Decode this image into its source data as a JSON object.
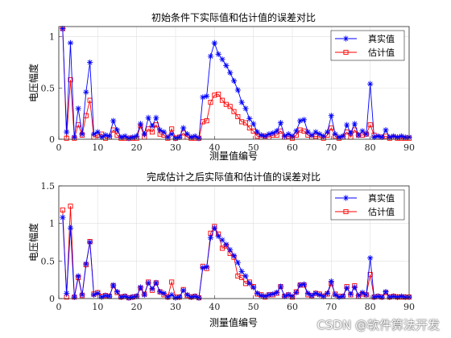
{
  "watermark": "CSDN @软件算法开发",
  "colors": {
    "real": "#0000ff",
    "est": "#ff0000"
  },
  "chart_data": [
    {
      "type": "line",
      "title": "初始条件下实际值和估计值的误差对比",
      "xlabel": "测量值编号",
      "ylabel": "电压幅度",
      "xlim": [
        0,
        90
      ],
      "ylim": [
        0,
        1.1
      ],
      "xticks": [
        0,
        10,
        20,
        30,
        40,
        50,
        60,
        70,
        80,
        90
      ],
      "yticks": [
        0,
        0.5,
        1
      ],
      "ytick_labels": [
        "0",
        "0.5",
        "1"
      ],
      "grid": true,
      "legend_position": "top-right",
      "x": [
        1,
        2,
        3,
        4,
        5,
        6,
        7,
        8,
        9,
        10,
        11,
        12,
        13,
        14,
        15,
        16,
        17,
        18,
        19,
        20,
        21,
        22,
        23,
        24,
        25,
        26,
        27,
        28,
        29,
        30,
        31,
        32,
        33,
        34,
        35,
        36,
        37,
        38,
        39,
        40,
        41,
        42,
        43,
        44,
        45,
        46,
        47,
        48,
        49,
        50,
        51,
        52,
        53,
        54,
        55,
        56,
        57,
        58,
        59,
        60,
        61,
        62,
        63,
        64,
        65,
        66,
        67,
        68,
        69,
        70,
        71,
        72,
        73,
        74,
        75,
        76,
        77,
        78,
        79,
        80,
        81,
        82,
        83,
        84,
        85,
        86,
        87,
        88,
        89,
        90
      ],
      "series": [
        {
          "name": "真实值",
          "marker": "asterisk",
          "color": "#0000ff",
          "values": [
            1.08,
            0.07,
            0.94,
            0.02,
            0.3,
            0.05,
            0.46,
            0.75,
            0.05,
            0.07,
            0.02,
            0.04,
            0.03,
            0.18,
            0.09,
            0.02,
            0.03,
            0.01,
            0.02,
            0.03,
            0.15,
            0.05,
            0.21,
            0.13,
            0.21,
            0.09,
            0.07,
            0.02,
            0.05,
            0.01,
            0.02,
            0.11,
            0.05,
            0.02,
            0.03,
            0.01,
            0.41,
            0.42,
            0.81,
            0.94,
            0.83,
            0.78,
            0.72,
            0.65,
            0.57,
            0.48,
            0.36,
            0.3,
            0.2,
            0.15,
            0.07,
            0.04,
            0.03,
            0.05,
            0.06,
            0.08,
            0.16,
            0.03,
            0.05,
            0.03,
            0.08,
            0.18,
            0.19,
            0.07,
            0.04,
            0.07,
            0.05,
            0.03,
            0.07,
            0.23,
            0.05,
            0.02,
            0.03,
            0.14,
            0.06,
            0.15,
            0.04,
            0.08,
            0.05,
            0.54,
            0.02,
            0.03,
            0.02,
            0.09,
            0.02,
            0.03,
            0.02,
            0.03,
            0.02,
            0.02
          ]
        },
        {
          "name": "估计值",
          "marker": "square",
          "color": "#ff0000",
          "values": [
            1.08,
            0.01,
            0.58,
            0.01,
            0.14,
            0.04,
            0.23,
            0.38,
            0.02,
            0.04,
            0.05,
            0.01,
            0.02,
            0.09,
            0.04,
            0.01,
            0.01,
            0.01,
            0.01,
            0.01,
            0.13,
            0.02,
            0.1,
            0.07,
            0.14,
            0.05,
            0.04,
            0.01,
            0.1,
            0.01,
            0.02,
            0.06,
            0.02,
            0.01,
            0.01,
            0.01,
            0.17,
            0.18,
            0.36,
            0.43,
            0.44,
            0.38,
            0.34,
            0.32,
            0.27,
            0.22,
            0.17,
            0.16,
            0.11,
            0.08,
            0.03,
            0.02,
            0.03,
            0.02,
            0.04,
            0.04,
            0.08,
            0.02,
            0.03,
            0.01,
            0.04,
            0.09,
            0.08,
            0.04,
            0.02,
            0.03,
            0.02,
            0.01,
            0.04,
            0.11,
            0.03,
            0.01,
            0.02,
            0.07,
            0.02,
            0.09,
            0.04,
            0.04,
            0.05,
            0.14,
            0.04,
            0.02,
            0.02,
            0.03,
            0.01,
            0.02,
            0.01,
            0.01,
            0.01,
            0.01
          ]
        }
      ]
    },
    {
      "type": "line",
      "title": "完成估计之后实际值和估计值的误差对比",
      "xlabel": "测量值编号",
      "ylabel": "电压幅度",
      "xlim": [
        0,
        90
      ],
      "ylim": [
        0,
        1.5
      ],
      "xticks": [
        0,
        10,
        20,
        30,
        40,
        50,
        60,
        70,
        80,
        90
      ],
      "yticks": [
        0,
        0.5,
        1,
        1.5
      ],
      "ytick_labels": [
        "0",
        "0.5",
        "1",
        "1.5"
      ],
      "grid": true,
      "legend_position": "top-right",
      "x": [
        1,
        2,
        3,
        4,
        5,
        6,
        7,
        8,
        9,
        10,
        11,
        12,
        13,
        14,
        15,
        16,
        17,
        18,
        19,
        20,
        21,
        22,
        23,
        24,
        25,
        26,
        27,
        28,
        29,
        30,
        31,
        32,
        33,
        34,
        35,
        36,
        37,
        38,
        39,
        40,
        41,
        42,
        43,
        44,
        45,
        46,
        47,
        48,
        49,
        50,
        51,
        52,
        53,
        54,
        55,
        56,
        57,
        58,
        59,
        60,
        61,
        62,
        63,
        64,
        65,
        66,
        67,
        68,
        69,
        70,
        71,
        72,
        73,
        74,
        75,
        76,
        77,
        78,
        79,
        80,
        81,
        82,
        83,
        84,
        85,
        86,
        87,
        88,
        89,
        90
      ],
      "series": [
        {
          "name": "真实值",
          "marker": "asterisk",
          "color": "#0000ff",
          "values": [
            1.08,
            0.07,
            0.94,
            0.02,
            0.3,
            0.05,
            0.46,
            0.75,
            0.05,
            0.07,
            0.02,
            0.04,
            0.03,
            0.18,
            0.09,
            0.02,
            0.03,
            0.01,
            0.02,
            0.03,
            0.15,
            0.05,
            0.21,
            0.13,
            0.21,
            0.09,
            0.07,
            0.02,
            0.05,
            0.01,
            0.02,
            0.11,
            0.05,
            0.02,
            0.03,
            0.01,
            0.41,
            0.42,
            0.81,
            0.94,
            0.83,
            0.78,
            0.72,
            0.65,
            0.57,
            0.48,
            0.36,
            0.3,
            0.2,
            0.15,
            0.07,
            0.04,
            0.03,
            0.05,
            0.06,
            0.08,
            0.16,
            0.03,
            0.05,
            0.03,
            0.08,
            0.18,
            0.19,
            0.07,
            0.04,
            0.07,
            0.05,
            0.03,
            0.07,
            0.23,
            0.05,
            0.02,
            0.03,
            0.14,
            0.06,
            0.15,
            0.04,
            0.08,
            0.05,
            0.54,
            0.02,
            0.03,
            0.02,
            0.09,
            0.02,
            0.03,
            0.02,
            0.03,
            0.02,
            0.02
          ]
        },
        {
          "name": "估计值",
          "marker": "square",
          "color": "#ff0000",
          "values": [
            1.18,
            0.02,
            1.23,
            0.02,
            0.28,
            0.04,
            0.45,
            0.76,
            0.06,
            0.08,
            0.03,
            0.04,
            0.03,
            0.17,
            0.08,
            0.02,
            0.03,
            0.01,
            0.02,
            0.03,
            0.14,
            0.06,
            0.22,
            0.11,
            0.21,
            0.09,
            0.05,
            0.02,
            0.22,
            0.02,
            0.02,
            0.12,
            0.04,
            0.02,
            0.03,
            0.01,
            0.43,
            0.4,
            0.87,
            0.96,
            0.86,
            0.67,
            0.7,
            0.6,
            0.55,
            0.3,
            0.28,
            0.2,
            0.22,
            0.16,
            0.06,
            0.05,
            0.02,
            0.05,
            0.05,
            0.07,
            0.16,
            0.03,
            0.05,
            0.02,
            0.09,
            0.18,
            0.18,
            0.05,
            0.04,
            0.07,
            0.06,
            0.03,
            0.06,
            0.2,
            0.06,
            0.03,
            0.03,
            0.16,
            0.05,
            0.17,
            0.03,
            0.06,
            0.05,
            0.32,
            0.02,
            0.03,
            0.02,
            0.08,
            0.02,
            0.03,
            0.02,
            0.02,
            0.02,
            0.02
          ]
        }
      ]
    }
  ]
}
